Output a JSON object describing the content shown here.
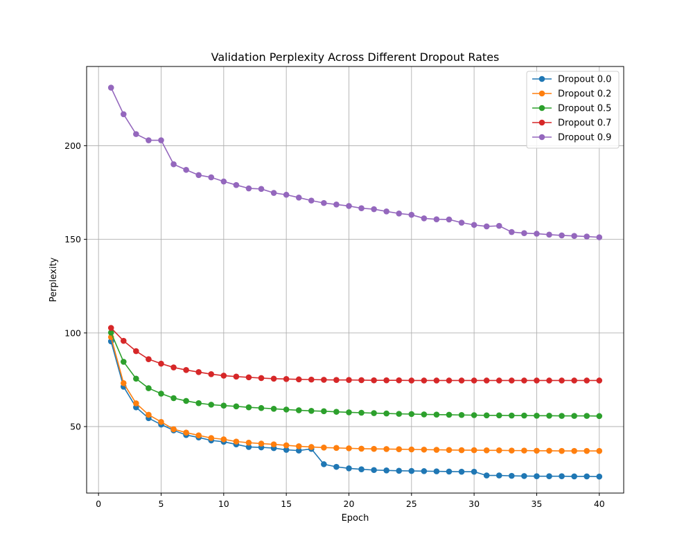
{
  "chart_data": {
    "type": "line",
    "title": "Validation Perplexity Across Different Dropout Rates",
    "xlabel": "Epoch",
    "ylabel": "Perplexity",
    "xlim": [
      -0.95,
      41.95
    ],
    "ylim": [
      14.5,
      242.3
    ],
    "xticks": [
      0,
      5,
      10,
      15,
      20,
      25,
      30,
      35,
      40
    ],
    "yticks": [
      50,
      100,
      150,
      200
    ],
    "grid": true,
    "legend_position": "top-right",
    "x": [
      1,
      2,
      3,
      4,
      5,
      6,
      7,
      8,
      9,
      10,
      11,
      12,
      13,
      14,
      15,
      16,
      17,
      18,
      19,
      20,
      21,
      22,
      23,
      24,
      25,
      26,
      27,
      28,
      29,
      30,
      31,
      32,
      33,
      34,
      35,
      36,
      37,
      38,
      39,
      40
    ],
    "series": [
      {
        "name": "Dropout 0.0",
        "color": "#1f77b4",
        "values": [
          95.5,
          71.3,
          60.3,
          54.5,
          51.1,
          48.0,
          45.5,
          44.2,
          42.6,
          41.9,
          40.5,
          39.1,
          38.9,
          38.5,
          37.6,
          37.2,
          38.1,
          29.9,
          28.5,
          27.7,
          27.2,
          26.8,
          26.6,
          26.4,
          26.3,
          26.2,
          26.1,
          26.0,
          25.9,
          25.9,
          23.9,
          23.9,
          23.7,
          23.6,
          23.5,
          23.5,
          23.5,
          23.4,
          23.4,
          23.3
        ]
      },
      {
        "name": "Dropout 0.2",
        "color": "#ff7f0e",
        "values": [
          97.8,
          73.2,
          62.4,
          56.3,
          52.5,
          48.6,
          46.8,
          45.3,
          43.9,
          43.2,
          42.0,
          41.4,
          40.9,
          40.5,
          40.0,
          39.5,
          39.1,
          38.8,
          38.6,
          38.4,
          38.2,
          38.1,
          38.0,
          37.9,
          37.8,
          37.7,
          37.6,
          37.5,
          37.4,
          37.4,
          37.3,
          37.3,
          37.2,
          37.2,
          37.1,
          37.1,
          37.0,
          37.0,
          37.0,
          37.0
        ]
      },
      {
        "name": "Dropout 0.5",
        "color": "#2ca02c",
        "values": [
          100.2,
          84.6,
          75.6,
          70.5,
          67.6,
          65.2,
          63.7,
          62.5,
          61.7,
          61.2,
          60.8,
          60.3,
          59.9,
          59.5,
          59.1,
          58.7,
          58.4,
          58.2,
          57.9,
          57.6,
          57.4,
          57.2,
          57.0,
          56.8,
          56.7,
          56.5,
          56.4,
          56.3,
          56.2,
          56.1,
          56.0,
          56.0,
          55.9,
          55.9,
          55.8,
          55.8,
          55.7,
          55.7,
          55.7,
          55.6
        ]
      },
      {
        "name": "Dropout 0.7",
        "color": "#d62728",
        "values": [
          102.7,
          95.8,
          90.3,
          86.0,
          83.6,
          81.6,
          80.2,
          79.1,
          78.0,
          77.2,
          76.7,
          76.3,
          75.9,
          75.6,
          75.4,
          75.2,
          75.1,
          75.0,
          74.9,
          74.9,
          74.8,
          74.7,
          74.7,
          74.7,
          74.6,
          74.6,
          74.6,
          74.6,
          74.6,
          74.6,
          74.6,
          74.6,
          74.6,
          74.6,
          74.6,
          74.6,
          74.6,
          74.6,
          74.6,
          74.6
        ]
      },
      {
        "name": "Dropout 0.9",
        "color": "#9467bd",
        "values": [
          231.0,
          216.8,
          206.2,
          202.9,
          202.9,
          190.1,
          187.1,
          184.3,
          183.1,
          180.9,
          179.0,
          177.2,
          176.9,
          174.8,
          173.8,
          172.3,
          170.7,
          169.4,
          168.6,
          167.8,
          166.6,
          166.1,
          164.9,
          163.8,
          163.1,
          161.2,
          160.7,
          160.6,
          158.9,
          157.7,
          156.9,
          157.2,
          153.9,
          153.3,
          153.0,
          152.5,
          152.1,
          151.8,
          151.5,
          151.1
        ]
      }
    ]
  }
}
